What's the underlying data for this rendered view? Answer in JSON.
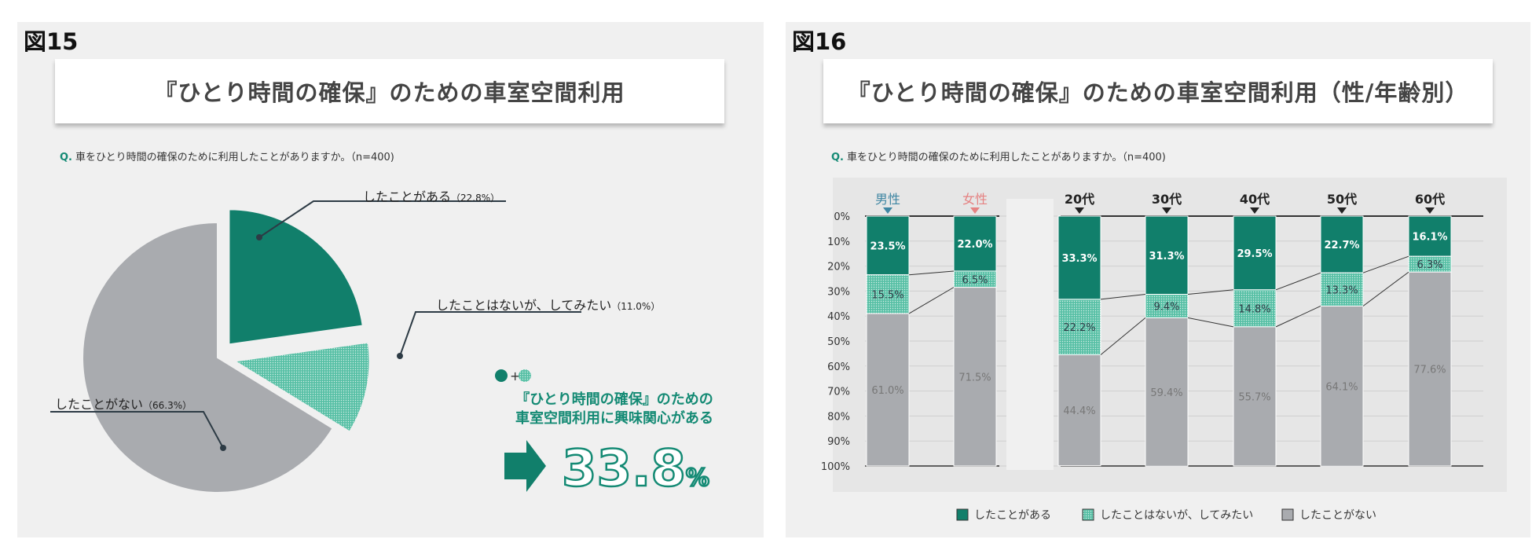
{
  "colors": {
    "green": "#117f6b",
    "teal_light": "#58c0a6",
    "gray": "#a9abaf",
    "accent": "#148a74",
    "male": "#3f86a3",
    "female": "#e58282"
  },
  "fig15": {
    "label": "図15",
    "title": "『ひとり時間の確保』のための車室空間利用",
    "question_prefix": "Q.",
    "question": "車をひとり時間の確保のために利用したことがありますか。（n=400)",
    "slices": [
      {
        "label": "したことがある",
        "pct_label": "（22.8%）",
        "value": 22.8,
        "color": "#117f6b"
      },
      {
        "label": "したことはないが、してみたい",
        "pct_label": "（11.0%）",
        "value": 11.0,
        "color": "#58c0a6"
      },
      {
        "label": "したことがない",
        "pct_label": "（66.3%）",
        "value": 66.3,
        "color": "#a9abaf"
      }
    ],
    "plus": "+",
    "callout_line1": "『ひとり時間の確保』のための",
    "callout_line2": "車室空間利用に興味関心がある",
    "big_value": "33.8",
    "big_unit": "%"
  },
  "fig16": {
    "label": "図16",
    "title": "『ひとり時間の確保』のための車室空間利用（性/年齢別）",
    "question_prefix": "Q.",
    "question": "車をひとり時間の確保のために利用したことがありますか。（n=400)",
    "y_ticks": [
      "0%",
      "10%",
      "20%",
      "30%",
      "40%",
      "50%",
      "60%",
      "70%",
      "80%",
      "90%",
      "100%"
    ],
    "legend": [
      "したことがある",
      "したことはないが、してみたい",
      "したことがない"
    ]
  },
  "chart_data": [
    {
      "type": "pie",
      "title": "『ひとり時間の確保』のための車室空間利用",
      "categories": [
        "したことがある",
        "したことはないが、してみたい",
        "したことがない"
      ],
      "values": [
        22.8,
        11.0,
        66.3
      ],
      "annotation": "33.8%"
    },
    {
      "type": "bar",
      "stacked": true,
      "title": "『ひとり時間の確保』のための車室空間利用（性/年齢別）",
      "categories": [
        "男性",
        "女性",
        "20代",
        "30代",
        "40代",
        "50代",
        "60代"
      ],
      "category_labels": [
        "男性",
        "女性",
        "20代",
        "30代",
        "40代",
        "50代",
        "60代"
      ],
      "ylim": [
        0,
        100
      ],
      "y_inverted": true,
      "series": [
        {
          "name": "したことがある",
          "values": [
            23.5,
            22.0,
            33.3,
            31.3,
            29.5,
            22.7,
            16.1
          ],
          "labels": [
            "23.5%",
            "22.0%",
            "33.3%",
            "31.3%",
            "29.5%",
            "22.7%",
            "16.1%"
          ]
        },
        {
          "name": "したことはないが、してみたい",
          "values": [
            15.5,
            6.5,
            22.2,
            9.4,
            14.8,
            13.3,
            6.3
          ],
          "labels": [
            "15.5%",
            "6.5%",
            "22.2%",
            "9.4%",
            "14.8%",
            "13.3%",
            "6.3%"
          ]
        },
        {
          "name": "したことがない",
          "values": [
            61.0,
            71.5,
            44.4,
            59.4,
            55.7,
            64.1,
            77.6
          ],
          "labels": [
            "61.0%",
            "71.5%",
            "44.4%",
            "59.4%",
            "55.7%",
            "64.1%",
            "77.6%"
          ]
        }
      ]
    }
  ]
}
